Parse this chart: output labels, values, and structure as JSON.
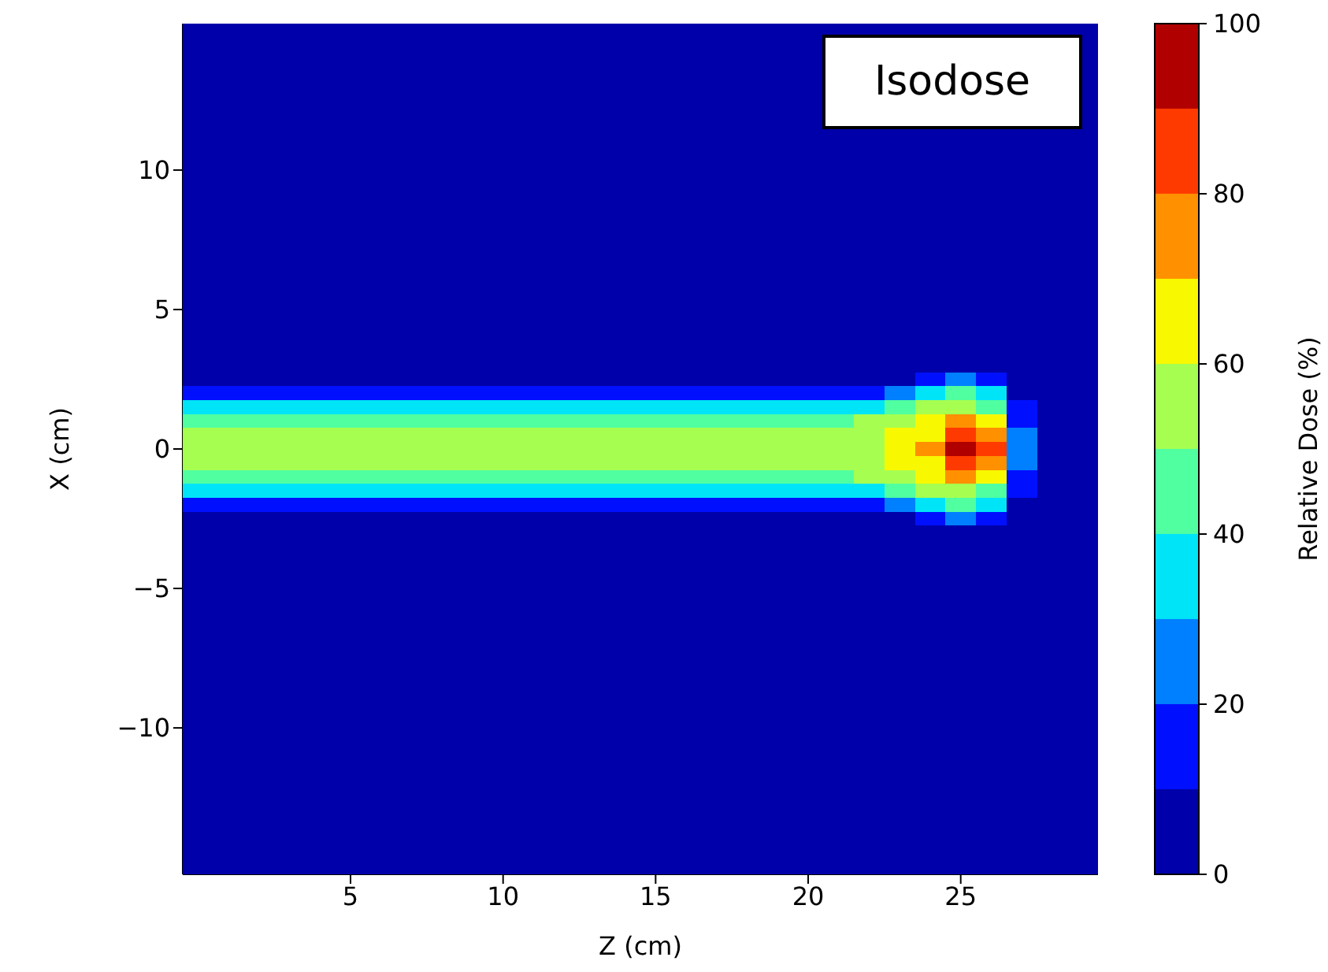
{
  "chart_data": {
    "type": "heatmap",
    "xlabel": "Z (cm)",
    "ylabel": "X (cm)",
    "clabel": "Relative Dose (%)",
    "annotations": [
      "Isodose"
    ],
    "clim": [
      0,
      100
    ],
    "cticks": [
      0,
      20,
      40,
      60,
      80,
      100
    ],
    "grid": false,
    "categories": [
      null,
      null,
      null,
      null,
      null,
      "5",
      null,
      null,
      null,
      null,
      "10",
      null,
      null,
      null,
      null,
      "15",
      null,
      null,
      null,
      null,
      "20",
      null,
      null,
      null,
      null,
      "25",
      null,
      null,
      null,
      null
    ],
    "y_categories": [
      null,
      null,
      null,
      null,
      null,
      null,
      null,
      null,
      null,
      null,
      "10",
      null,
      null,
      null,
      null,
      null,
      null,
      null,
      null,
      null,
      "5",
      null,
      null,
      null,
      null,
      null,
      null,
      null,
      null,
      null,
      "0",
      null,
      null,
      null,
      null,
      null,
      null,
      null,
      null,
      null,
      "−5",
      null,
      null,
      null,
      null,
      null,
      null,
      null,
      null,
      null,
      "−10",
      null,
      null,
      null,
      null,
      null,
      null,
      null,
      null,
      null,
      null
    ],
    "cells": [
      [
        5,
        5,
        5,
        5,
        5,
        5,
        5,
        5,
        5,
        5,
        5,
        5,
        5,
        5,
        5,
        5,
        5,
        5,
        5,
        5,
        5,
        5,
        5,
        5,
        5,
        5,
        5,
        5,
        5,
        5
      ],
      [
        5,
        5,
        5,
        5,
        5,
        5,
        5,
        5,
        5,
        5,
        5,
        5,
        5,
        5,
        5,
        5,
        5,
        5,
        5,
        5,
        5,
        null,
        null,
        null,
        null,
        null,
        null,
        null,
        null,
        5
      ],
      [
        5,
        5,
        5,
        5,
        5,
        5,
        5,
        5,
        5,
        5,
        5,
        5,
        5,
        5,
        5,
        5,
        5,
        5,
        5,
        5,
        5,
        null,
        null,
        null,
        null,
        null,
        null,
        null,
        null,
        5
      ],
      [
        5,
        5,
        5,
        5,
        5,
        5,
        5,
        5,
        5,
        5,
        5,
        5,
        5,
        5,
        5,
        5,
        5,
        5,
        5,
        5,
        5,
        null,
        null,
        null,
        null,
        null,
        null,
        null,
        null,
        5
      ],
      [
        5,
        5,
        5,
        5,
        5,
        5,
        5,
        5,
        5,
        5,
        5,
        5,
        5,
        5,
        5,
        5,
        5,
        5,
        5,
        5,
        5,
        null,
        null,
        null,
        null,
        null,
        null,
        null,
        null,
        5
      ],
      [
        5,
        5,
        5,
        5,
        5,
        5,
        5,
        5,
        5,
        5,
        5,
        5,
        5,
        5,
        5,
        5,
        5,
        5,
        5,
        5,
        5,
        null,
        null,
        null,
        null,
        null,
        null,
        null,
        null,
        5
      ],
      [
        5,
        5,
        5,
        5,
        5,
        5,
        5,
        5,
        5,
        5,
        5,
        5,
        5,
        5,
        5,
        5,
        5,
        5,
        5,
        5,
        5,
        null,
        null,
        null,
        null,
        null,
        null,
        null,
        null,
        5
      ],
      [
        5,
        5,
        5,
        5,
        5,
        5,
        5,
        5,
        5,
        5,
        5,
        5,
        5,
        5,
        5,
        5,
        5,
        5,
        5,
        5,
        5,
        5,
        5,
        5,
        5,
        5,
        5,
        5,
        5,
        5
      ],
      [
        5,
        5,
        5,
        5,
        5,
        5,
        5,
        5,
        5,
        5,
        5,
        5,
        5,
        5,
        5,
        5,
        5,
        5,
        5,
        5,
        5,
        5,
        5,
        5,
        5,
        5,
        5,
        5,
        5,
        5
      ],
      [
        5,
        5,
        5,
        5,
        5,
        5,
        5,
        5,
        5,
        5,
        5,
        5,
        5,
        5,
        5,
        5,
        5,
        5,
        5,
        5,
        5,
        5,
        5,
        5,
        5,
        5,
        5,
        5,
        5,
        5
      ],
      [
        5,
        5,
        5,
        5,
        5,
        5,
        5,
        5,
        5,
        5,
        5,
        5,
        5,
        5,
        5,
        5,
        5,
        5,
        5,
        5,
        5,
        5,
        5,
        5,
        5,
        5,
        5,
        5,
        5,
        5
      ],
      [
        5,
        5,
        5,
        5,
        5,
        5,
        5,
        5,
        5,
        5,
        5,
        5,
        5,
        5,
        5,
        5,
        5,
        5,
        5,
        5,
        5,
        5,
        5,
        5,
        5,
        5,
        5,
        5,
        5,
        5
      ],
      [
        5,
        5,
        5,
        5,
        5,
        5,
        5,
        5,
        5,
        5,
        5,
        5,
        5,
        5,
        5,
        5,
        5,
        5,
        5,
        5,
        5,
        5,
        5,
        5,
        5,
        5,
        5,
        5,
        5,
        5
      ],
      [
        5,
        5,
        5,
        5,
        5,
        5,
        5,
        5,
        5,
        5,
        5,
        5,
        5,
        5,
        5,
        5,
        5,
        5,
        5,
        5,
        5,
        5,
        5,
        5,
        5,
        5,
        5,
        5,
        5,
        5
      ],
      [
        5,
        5,
        5,
        5,
        5,
        5,
        5,
        5,
        5,
        5,
        5,
        5,
        5,
        5,
        5,
        5,
        5,
        5,
        5,
        5,
        5,
        5,
        5,
        5,
        5,
        5,
        5,
        5,
        5,
        5
      ],
      [
        5,
        5,
        5,
        5,
        5,
        5,
        5,
        5,
        5,
        5,
        5,
        5,
        5,
        5,
        5,
        5,
        5,
        5,
        5,
        5,
        5,
        5,
        5,
        5,
        5,
        5,
        5,
        5,
        5,
        5
      ],
      [
        5,
        5,
        5,
        5,
        5,
        5,
        5,
        5,
        5,
        5,
        5,
        5,
        5,
        5,
        5,
        5,
        5,
        5,
        5,
        5,
        5,
        5,
        5,
        5,
        5,
        5,
        5,
        5,
        5,
        5
      ],
      [
        5,
        5,
        5,
        5,
        5,
        5,
        5,
        5,
        5,
        5,
        5,
        5,
        5,
        5,
        5,
        5,
        5,
        5,
        5,
        5,
        5,
        5,
        5,
        5,
        5,
        5,
        5,
        5,
        5,
        5
      ],
      [
        5,
        5,
        5,
        5,
        5,
        5,
        5,
        5,
        5,
        5,
        5,
        5,
        5,
        5,
        5,
        5,
        5,
        5,
        5,
        5,
        5,
        5,
        5,
        5,
        5,
        5,
        5,
        5,
        5,
        5
      ],
      [
        5,
        5,
        5,
        5,
        5,
        5,
        5,
        5,
        5,
        5,
        5,
        5,
        5,
        5,
        5,
        5,
        5,
        5,
        5,
        5,
        5,
        5,
        5,
        5,
        5,
        5,
        5,
        5,
        5,
        5
      ],
      [
        5,
        5,
        5,
        5,
        5,
        5,
        5,
        5,
        5,
        5,
        5,
        5,
        5,
        5,
        5,
        5,
        5,
        5,
        5,
        5,
        5,
        5,
        5,
        5,
        5,
        5,
        5,
        5,
        5,
        5
      ],
      [
        5,
        5,
        5,
        5,
        5,
        5,
        5,
        5,
        5,
        5,
        5,
        5,
        5,
        5,
        5,
        5,
        5,
        5,
        5,
        5,
        5,
        5,
        5,
        5,
        5,
        5,
        5,
        5,
        5,
        5
      ],
      [
        5,
        5,
        5,
        5,
        5,
        5,
        5,
        5,
        5,
        5,
        5,
        5,
        5,
        5,
        5,
        5,
        5,
        5,
        5,
        5,
        5,
        5,
        5,
        5,
        5,
        5,
        5,
        5,
        5,
        5
      ],
      [
        5,
        5,
        5,
        5,
        5,
        5,
        5,
        5,
        5,
        5,
        5,
        5,
        5,
        5,
        5,
        5,
        5,
        5,
        5,
        5,
        5,
        5,
        5,
        5,
        5,
        5,
        5,
        5,
        5,
        5
      ],
      [
        5,
        5,
        5,
        5,
        5,
        5,
        5,
        5,
        5,
        5,
        5,
        5,
        5,
        5,
        5,
        5,
        5,
        5,
        5,
        5,
        5,
        5,
        5,
        5,
        5,
        5,
        5,
        5,
        5,
        5
      ],
      [
        5,
        5,
        5,
        5,
        5,
        5,
        5,
        5,
        5,
        5,
        5,
        5,
        5,
        5,
        5,
        5,
        5,
        5,
        5,
        5,
        5,
        5,
        5,
        5,
        15,
        25,
        15,
        5,
        5,
        5
      ],
      [
        15,
        15,
        15,
        15,
        15,
        15,
        15,
        15,
        15,
        15,
        15,
        15,
        15,
        15,
        15,
        15,
        15,
        15,
        15,
        15,
        15,
        15,
        15,
        25,
        35,
        45,
        35,
        5,
        5,
        5
      ],
      [
        35,
        35,
        35,
        35,
        35,
        35,
        35,
        35,
        35,
        35,
        35,
        35,
        35,
        35,
        35,
        35,
        35,
        35,
        35,
        35,
        35,
        35,
        35,
        45,
        55,
        55,
        45,
        15,
        5,
        5
      ],
      [
        45,
        45,
        45,
        45,
        45,
        45,
        45,
        45,
        45,
        45,
        45,
        45,
        45,
        45,
        45,
        45,
        45,
        45,
        45,
        45,
        45,
        45,
        55,
        55,
        65,
        75,
        65,
        15,
        5,
        5
      ],
      [
        55,
        55,
        55,
        55,
        55,
        55,
        55,
        55,
        55,
        55,
        55,
        55,
        55,
        55,
        55,
        55,
        55,
        55,
        55,
        55,
        55,
        55,
        55,
        65,
        65,
        85,
        75,
        25,
        5,
        5
      ],
      [
        55,
        55,
        55,
        55,
        55,
        55,
        55,
        55,
        55,
        55,
        55,
        55,
        55,
        55,
        55,
        55,
        55,
        55,
        55,
        55,
        55,
        55,
        55,
        65,
        75,
        95,
        85,
        25,
        5,
        5
      ],
      [
        55,
        55,
        55,
        55,
        55,
        55,
        55,
        55,
        55,
        55,
        55,
        55,
        55,
        55,
        55,
        55,
        55,
        55,
        55,
        55,
        55,
        55,
        55,
        65,
        65,
        85,
        75,
        25,
        5,
        5
      ],
      [
        45,
        45,
        45,
        45,
        45,
        45,
        45,
        45,
        45,
        45,
        45,
        45,
        45,
        45,
        45,
        45,
        45,
        45,
        45,
        45,
        45,
        45,
        55,
        55,
        65,
        75,
        65,
        15,
        5,
        5
      ],
      [
        35,
        35,
        35,
        35,
        35,
        35,
        35,
        35,
        35,
        35,
        35,
        35,
        35,
        35,
        35,
        35,
        35,
        35,
        35,
        35,
        35,
        35,
        35,
        45,
        55,
        55,
        45,
        15,
        5,
        5
      ],
      [
        15,
        15,
        15,
        15,
        15,
        15,
        15,
        15,
        15,
        15,
        15,
        15,
        15,
        15,
        15,
        15,
        15,
        15,
        15,
        15,
        15,
        15,
        15,
        25,
        35,
        45,
        35,
        5,
        5,
        5
      ],
      [
        5,
        5,
        5,
        5,
        5,
        5,
        5,
        5,
        5,
        5,
        5,
        5,
        5,
        5,
        5,
        5,
        5,
        5,
        5,
        5,
        5,
        5,
        5,
        5,
        15,
        25,
        15,
        5,
        5,
        5
      ],
      [
        5,
        5,
        5,
        5,
        5,
        5,
        5,
        5,
        5,
        5,
        5,
        5,
        5,
        5,
        5,
        5,
        5,
        5,
        5,
        5,
        5,
        5,
        5,
        5,
        5,
        5,
        5,
        5,
        5,
        5
      ],
      [
        5,
        5,
        5,
        5,
        5,
        5,
        5,
        5,
        5,
        5,
        5,
        5,
        5,
        5,
        5,
        5,
        5,
        5,
        5,
        5,
        5,
        5,
        5,
        5,
        5,
        5,
        5,
        5,
        5,
        5
      ],
      [
        5,
        5,
        5,
        5,
        5,
        5,
        5,
        5,
        5,
        5,
        5,
        5,
        5,
        5,
        5,
        5,
        5,
        5,
        5,
        5,
        5,
        5,
        5,
        5,
        5,
        5,
        5,
        5,
        5,
        5
      ],
      [
        5,
        5,
        5,
        5,
        5,
        5,
        5,
        5,
        5,
        5,
        5,
        5,
        5,
        5,
        5,
        5,
        5,
        5,
        5,
        5,
        5,
        5,
        5,
        5,
        5,
        5,
        5,
        5,
        5,
        5
      ],
      [
        5,
        5,
        5,
        5,
        5,
        5,
        5,
        5,
        5,
        5,
        5,
        5,
        5,
        5,
        5,
        5,
        5,
        5,
        5,
        5,
        5,
        5,
        5,
        5,
        5,
        5,
        5,
        5,
        5,
        5
      ],
      [
        5,
        5,
        5,
        5,
        5,
        5,
        5,
        5,
        5,
        5,
        5,
        5,
        5,
        5,
        5,
        5,
        5,
        5,
        5,
        5,
        5,
        5,
        5,
        5,
        5,
        5,
        5,
        5,
        5,
        5
      ],
      [
        5,
        5,
        5,
        5,
        5,
        5,
        5,
        5,
        5,
        5,
        5,
        5,
        5,
        5,
        5,
        5,
        5,
        5,
        5,
        5,
        5,
        5,
        5,
        5,
        5,
        5,
        5,
        5,
        5,
        5
      ],
      [
        5,
        5,
        5,
        5,
        5,
        5,
        5,
        5,
        5,
        5,
        5,
        5,
        5,
        5,
        5,
        5,
        5,
        5,
        5,
        5,
        5,
        5,
        5,
        5,
        5,
        5,
        5,
        5,
        5,
        5
      ],
      [
        5,
        5,
        5,
        5,
        5,
        5,
        5,
        5,
        5,
        5,
        5,
        5,
        5,
        5,
        5,
        5,
        5,
        5,
        5,
        5,
        5,
        5,
        5,
        5,
        5,
        5,
        5,
        5,
        5,
        5
      ],
      [
        5,
        5,
        5,
        5,
        5,
        5,
        5,
        5,
        5,
        5,
        5,
        5,
        5,
        5,
        5,
        5,
        5,
        5,
        5,
        5,
        5,
        5,
        5,
        5,
        5,
        5,
        5,
        5,
        5,
        5
      ],
      [
        5,
        5,
        5,
        5,
        5,
        5,
        5,
        5,
        5,
        5,
        5,
        5,
        5,
        5,
        5,
        5,
        5,
        5,
        5,
        5,
        5,
        5,
        5,
        5,
        5,
        5,
        5,
        5,
        5,
        5
      ],
      [
        5,
        5,
        5,
        5,
        5,
        5,
        5,
        5,
        5,
        5,
        5,
        5,
        5,
        5,
        5,
        5,
        5,
        5,
        5,
        5,
        5,
        5,
        5,
        5,
        5,
        5,
        5,
        5,
        5,
        5
      ],
      [
        5,
        5,
        5,
        5,
        5,
        5,
        5,
        5,
        5,
        5,
        5,
        5,
        5,
        5,
        5,
        5,
        5,
        5,
        5,
        5,
        5,
        5,
        5,
        5,
        5,
        5,
        5,
        5,
        5,
        5
      ],
      [
        5,
        5,
        5,
        5,
        5,
        5,
        5,
        5,
        5,
        5,
        5,
        5,
        5,
        5,
        5,
        5,
        5,
        5,
        5,
        5,
        5,
        5,
        5,
        5,
        5,
        5,
        5,
        5,
        5,
        5
      ],
      [
        5,
        5,
        5,
        5,
        5,
        5,
        5,
        5,
        5,
        5,
        5,
        5,
        5,
        5,
        5,
        5,
        5,
        5,
        5,
        5,
        5,
        5,
        5,
        5,
        5,
        5,
        5,
        5,
        5,
        5
      ],
      [
        5,
        5,
        5,
        5,
        5,
        5,
        5,
        5,
        5,
        5,
        5,
        5,
        5,
        5,
        5,
        5,
        5,
        5,
        5,
        5,
        5,
        5,
        5,
        5,
        5,
        5,
        5,
        5,
        5,
        5
      ],
      [
        5,
        5,
        5,
        5,
        5,
        5,
        5,
        5,
        5,
        5,
        5,
        5,
        5,
        5,
        5,
        5,
        5,
        5,
        5,
        5,
        5,
        5,
        5,
        5,
        5,
        5,
        5,
        5,
        5,
        5
      ],
      [
        5,
        5,
        5,
        5,
        5,
        5,
        5,
        5,
        5,
        5,
        5,
        5,
        5,
        5,
        5,
        5,
        5,
        5,
        5,
        5,
        5,
        5,
        5,
        5,
        5,
        5,
        5,
        5,
        5,
        5
      ],
      [
        5,
        5,
        5,
        5,
        5,
        5,
        5,
        5,
        5,
        5,
        5,
        5,
        5,
        5,
        5,
        5,
        5,
        5,
        5,
        5,
        5,
        5,
        5,
        5,
        5,
        5,
        5,
        5,
        5,
        5
      ],
      [
        5,
        5,
        5,
        5,
        5,
        5,
        5,
        5,
        5,
        5,
        5,
        5,
        5,
        5,
        5,
        5,
        5,
        5,
        5,
        5,
        5,
        5,
        5,
        5,
        5,
        5,
        5,
        5,
        5,
        5
      ],
      [
        5,
        5,
        5,
        5,
        5,
        5,
        5,
        5,
        5,
        5,
        5,
        5,
        5,
        5,
        5,
        5,
        5,
        5,
        5,
        5,
        5,
        5,
        5,
        5,
        5,
        5,
        5,
        5,
        5,
        5
      ],
      [
        5,
        5,
        5,
        5,
        5,
        5,
        5,
        5,
        5,
        5,
        5,
        5,
        5,
        5,
        5,
        5,
        5,
        5,
        5,
        5,
        5,
        5,
        5,
        5,
        5,
        5,
        5,
        5,
        5,
        5
      ],
      [
        5,
        5,
        5,
        5,
        5,
        5,
        5,
        5,
        5,
        5,
        5,
        5,
        5,
        5,
        5,
        5,
        5,
        5,
        5,
        5,
        5,
        5,
        5,
        5,
        5,
        5,
        5,
        5,
        5,
        5
      ],
      [
        5,
        5,
        5,
        5,
        5,
        5,
        5,
        5,
        5,
        5,
        5,
        5,
        5,
        5,
        5,
        5,
        5,
        5,
        5,
        5,
        5,
        5,
        5,
        5,
        5,
        5,
        5,
        5,
        5,
        5
      ],
      [
        5,
        5,
        5,
        5,
        5,
        5,
        5,
        5,
        5,
        5,
        5,
        5,
        5,
        5,
        5,
        5,
        5,
        5,
        5,
        5,
        5,
        5,
        5,
        5,
        5,
        5,
        5,
        5,
        5,
        5
      ]
    ]
  }
}
